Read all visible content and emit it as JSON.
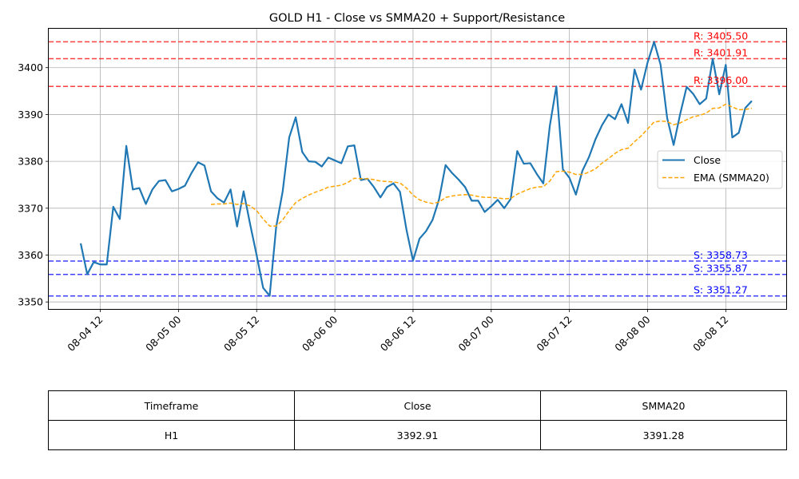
{
  "chart_data": {
    "type": "line",
    "title": "GOLD H1 - Close vs SMMA20 + Support/Resistance",
    "xlabel": "",
    "ylabel": "",
    "x_ticks": [
      "08-04 12",
      "08-05 00",
      "08-05 12",
      "08-06 00",
      "08-06 12",
      "08-07 00",
      "08-07 12",
      "08-08 00",
      "08-08 12"
    ],
    "y_ticks": [
      3350,
      3360,
      3370,
      3380,
      3390,
      3400
    ],
    "ylim": [
      3348.5,
      3408.3
    ],
    "grid": true,
    "legend_position": "right",
    "series": [
      {
        "name": "Close",
        "color": "#1f77b4",
        "style": "solid",
        "start_index": 0,
        "values": [
          3362.5,
          3355.9,
          3358.5,
          3358.0,
          3358.0,
          3370.3,
          3367.7,
          3383.3,
          3374.0,
          3374.3,
          3370.9,
          3374.0,
          3375.8,
          3376.0,
          3373.6,
          3374.1,
          3374.8,
          3377.5,
          3379.8,
          3379.1,
          3373.6,
          3372.1,
          3371.2,
          3374.0,
          3366.1,
          3373.6,
          3366.6,
          3360.0,
          3353.0,
          3351.3,
          3366.0,
          3373.6,
          3385.1,
          3389.4,
          3382.0,
          3380.0,
          3379.9,
          3378.9,
          3380.8,
          3380.2,
          3379.6,
          3383.2,
          3383.4,
          3376.0,
          3376.3,
          3374.5,
          3372.3,
          3374.5,
          3375.3,
          3373.5,
          3365.4,
          3358.8,
          3363.5,
          3365.1,
          3367.5,
          3371.9,
          3379.2,
          3377.5,
          3376.1,
          3374.5,
          3371.6,
          3371.6,
          3369.2,
          3370.4,
          3371.8,
          3370.0,
          3372.0,
          3382.2,
          3379.5,
          3379.6,
          3377.3,
          3375.3,
          3387.6,
          3396.0,
          3378.3,
          3376.5,
          3372.9,
          3378.0,
          3380.9,
          3384.7,
          3387.7,
          3390.0,
          3389.0,
          3392.2,
          3388.2,
          3399.6,
          3395.3,
          3401.1,
          3405.5,
          3400.6,
          3389.3,
          3383.5,
          3390.1,
          3395.9,
          3394.4,
          3392.2,
          3393.4,
          3401.9,
          3394.3,
          3400.6,
          3385.1,
          3386.1,
          3391.4,
          3392.9
        ]
      },
      {
        "name": "EMA (SMMA20)",
        "color": "#ffa500",
        "style": "dashed",
        "start_index": 20,
        "values": [
          3370.8,
          3370.9,
          3370.9,
          3371.1,
          3370.8,
          3371.0,
          3370.5,
          3369.5,
          3367.7,
          3366.2,
          3366.2,
          3367.5,
          3369.5,
          3371.2,
          3372.1,
          3372.8,
          3373.4,
          3373.9,
          3374.5,
          3374.7,
          3374.9,
          3375.5,
          3376.4,
          3376.3,
          3376.3,
          3376.1,
          3375.8,
          3375.7,
          3375.6,
          3375.4,
          3374.3,
          3372.8,
          3371.8,
          3371.3,
          3371.0,
          3371.3,
          3372.3,
          3372.6,
          3372.8,
          3372.9,
          3372.8,
          3372.5,
          3372.3,
          3372.3,
          3372.2,
          3372.0,
          3372.1,
          3373.0,
          3373.6,
          3374.2,
          3374.5,
          3374.6,
          3375.8,
          3377.8,
          3377.9,
          3377.7,
          3377.2,
          3377.2,
          3377.7,
          3378.4,
          3379.6,
          3380.6,
          3381.7,
          3382.5,
          3382.8,
          3384.2,
          3385.4,
          3386.9,
          3388.4,
          3388.6,
          3388.5,
          3387.8,
          3388.2,
          3388.9,
          3389.5,
          3389.8,
          3390.3,
          3391.3,
          3391.4,
          3392.2,
          3391.6,
          3391.0,
          3391.1,
          3391.3
        ]
      }
    ],
    "horizontal_lines": [
      {
        "kind": "resistance",
        "value": 3405.5,
        "label": "R: 3405.50",
        "color": "#ff0000"
      },
      {
        "kind": "resistance",
        "value": 3401.91,
        "label": "R: 3401.91",
        "color": "#ff0000"
      },
      {
        "kind": "resistance",
        "value": 3396.0,
        "label": "R: 3396.00",
        "color": "#ff0000"
      },
      {
        "kind": "support",
        "value": 3358.73,
        "label": "S: 3358.73",
        "color": "#0000ff"
      },
      {
        "kind": "support",
        "value": 3355.87,
        "label": "S: 3355.87",
        "color": "#0000ff"
      },
      {
        "kind": "support",
        "value": 3351.27,
        "label": "S: 3351.27",
        "color": "#0000ff"
      }
    ]
  },
  "table": {
    "headers": [
      "Timeframe",
      "Close",
      "SMMA20"
    ],
    "row": [
      "H1",
      "3392.91",
      "3391.28"
    ]
  }
}
